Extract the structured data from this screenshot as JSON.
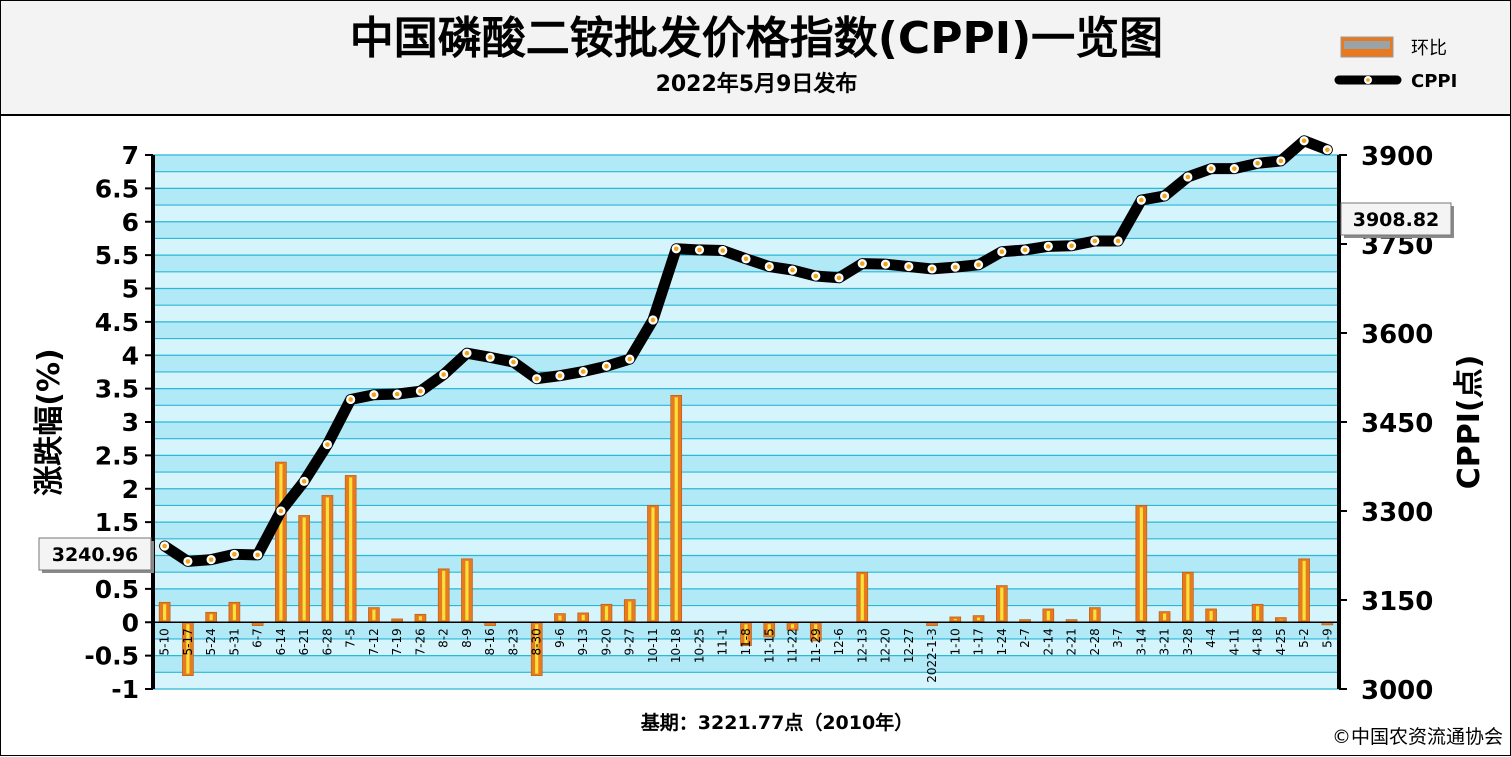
{
  "title": "中国磷酸二铵批发价格指数(CPPI)一览图",
  "subtitle": "2022年5月9日发布",
  "legend": {
    "bar_label": "环比",
    "line_label": "CPPI"
  },
  "callouts": {
    "start": "3240.96",
    "end": "3908.82"
  },
  "footer": {
    "base_period": "基期：3221.77点（2010年）",
    "copyright": "©中国农资流通协会"
  },
  "colors": {
    "bar_orange": "#e8791f",
    "bar_yellow": "#f6e23a",
    "band_light": "#d6f4fb",
    "band_dark": "#b2e9f7",
    "grid_line": "#2ab7d8",
    "line_black": "#000000",
    "marker_fill": "#ffffff",
    "marker_dot": "#f2a41b"
  },
  "chart_data": {
    "type": "bar+line",
    "categories": [
      "5-10",
      "5-17",
      "5-24",
      "5-31",
      "6-7",
      "6-14",
      "6-21",
      "6-28",
      "7-5",
      "7-12",
      "7-19",
      "7-26",
      "8-2",
      "8-9",
      "8-16",
      "8-23",
      "8-30",
      "9-6",
      "9-13",
      "9-20",
      "9-27",
      "10-11",
      "10-18",
      "10-25",
      "11-1",
      "11-8",
      "11-15",
      "11-22",
      "11-29",
      "12-6",
      "12-13",
      "12-20",
      "12-27",
      "2022-1-3",
      "1-10",
      "1-17",
      "1-24",
      "2-7",
      "2-14",
      "2-21",
      "2-28",
      "3-7",
      "3-14",
      "3-21",
      "3-28",
      "4-4",
      "4-11",
      "4-18",
      "4-25",
      "5-2",
      "5-9"
    ],
    "series": [
      {
        "name": "环比",
        "type": "bar",
        "axis": "left",
        "values": [
          0.3,
          -0.8,
          0.15,
          0.3,
          -0.05,
          2.4,
          1.6,
          1.9,
          2.2,
          0.22,
          0.05,
          0.12,
          0.8,
          0.95,
          -0.05,
          0,
          -0.8,
          0.13,
          0.14,
          0.27,
          0.34,
          1.75,
          3.4,
          0,
          0,
          -0.35,
          -0.22,
          -0.12,
          -0.28,
          0,
          0.75,
          0,
          0,
          -0.05,
          0.08,
          0.1,
          0.55,
          0.04,
          0.2,
          0.04,
          0.22,
          0,
          1.75,
          0.16,
          0.75,
          0.2,
          0,
          0.27,
          0.07,
          0.95,
          -0.04
        ]
      },
      {
        "name": "CPPI",
        "type": "line",
        "axis": "right",
        "values": [
          3240.96,
          3215,
          3218,
          3227,
          3226,
          3300,
          3350,
          3412,
          3488,
          3496,
          3497,
          3502,
          3530,
          3566,
          3559,
          3551,
          3523,
          3528,
          3535,
          3544,
          3556,
          3622,
          3742,
          3740,
          3739,
          3725,
          3712,
          3706,
          3696,
          3693,
          3717,
          3716,
          3712,
          3708,
          3711,
          3715,
          3737,
          3740,
          3746,
          3747,
          3755,
          3755,
          3824,
          3831,
          3863,
          3877,
          3877,
          3886,
          3890,
          3924,
          3908.82
        ]
      }
    ],
    "y_left": {
      "label": "涨跌幅(%)",
      "range": [
        -1,
        7
      ],
      "ticks": [
        "-1",
        "-0.5",
        "0",
        "0.5",
        "1",
        "1.5",
        "2",
        "2.5",
        "3",
        "3.5",
        "4",
        "4.5",
        "5",
        "5.5",
        "6",
        "6.5",
        "7"
      ]
    },
    "y_right": {
      "label": "CPPI(点)",
      "range": [
        3000,
        3900
      ],
      "ticks": [
        "3000",
        "3150",
        "3300",
        "3450",
        "3600",
        "3750",
        "3900"
      ]
    }
  }
}
